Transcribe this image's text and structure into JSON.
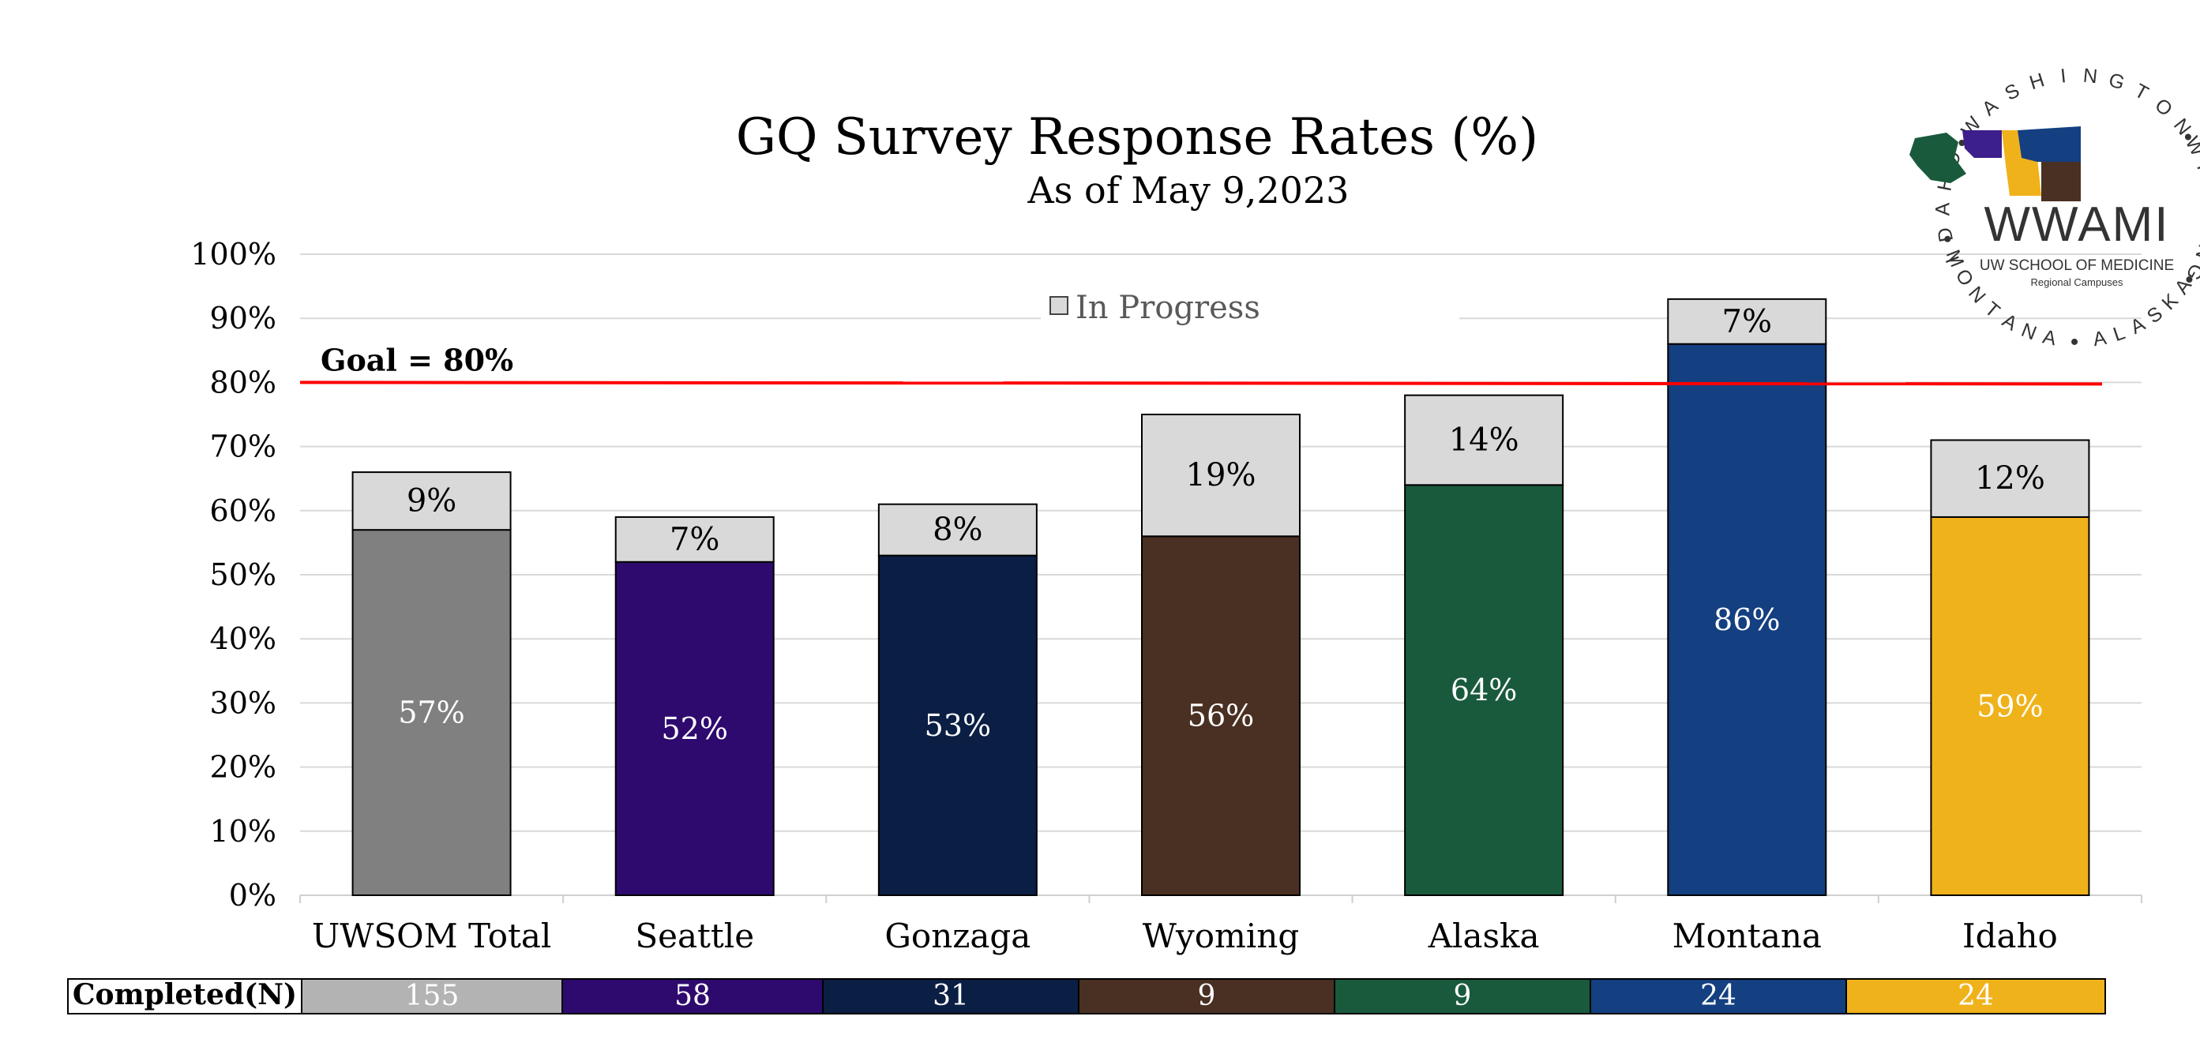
{
  "chart_data": {
    "type": "bar",
    "stacked": true,
    "title": "GQ Survey Response Rates (%)",
    "subtitle": "As of May 9,2023",
    "categories": [
      "UWSOM Total",
      "Seattle",
      "Gonzaga",
      "Wyoming",
      "Alaska",
      "Montana",
      "Idaho"
    ],
    "series": [
      {
        "values": [
          57,
          52,
          53,
          56,
          64,
          86,
          59
        ],
        "labels": [
          "57%",
          "52%",
          "53%",
          "56%",
          "64%",
          "86%",
          "59%"
        ],
        "colors": [
          "#808080",
          "#2e0a6e",
          "#0b1e44",
          "#4a3022",
          "#1a5a3c",
          "#143f80",
          "#f0b21a"
        ]
      },
      {
        "name": "In Progress",
        "values": [
          9,
          7,
          8,
          19,
          14,
          7,
          12
        ],
        "labels": [
          "9%",
          "7%",
          "8%",
          "19%",
          "14%",
          "7%",
          "12%"
        ],
        "color": "#d9d9d9"
      }
    ],
    "ylim": [
      0,
      100
    ],
    "yticks": [
      "0%",
      "10%",
      "20%",
      "30%",
      "40%",
      "50%",
      "60%",
      "70%",
      "80%",
      "90%",
      "100%"
    ],
    "grid": true,
    "legend_position": "top-center",
    "goal": {
      "value": 80,
      "label": "Goal = 80%",
      "color": "#ff0000"
    },
    "table": {
      "header": "Completed(N)",
      "values": [
        "155",
        "58",
        "31",
        "9",
        "9",
        "24",
        "24"
      ],
      "colors": [
        "#b3b3b3",
        "#2e0a6e",
        "#0b1e44",
        "#4a3022",
        "#1a5a3c",
        "#143f80",
        "#f0b21a"
      ]
    }
  },
  "logo": {
    "name": "WWAMI",
    "line1": "UW SCHOOL OF MEDICINE",
    "line2": "Regional Campuses",
    "ring_words": [
      "WASHINGTON",
      "WYOMING",
      "ALASKA",
      "MONTANA",
      "IDAHO"
    ]
  }
}
